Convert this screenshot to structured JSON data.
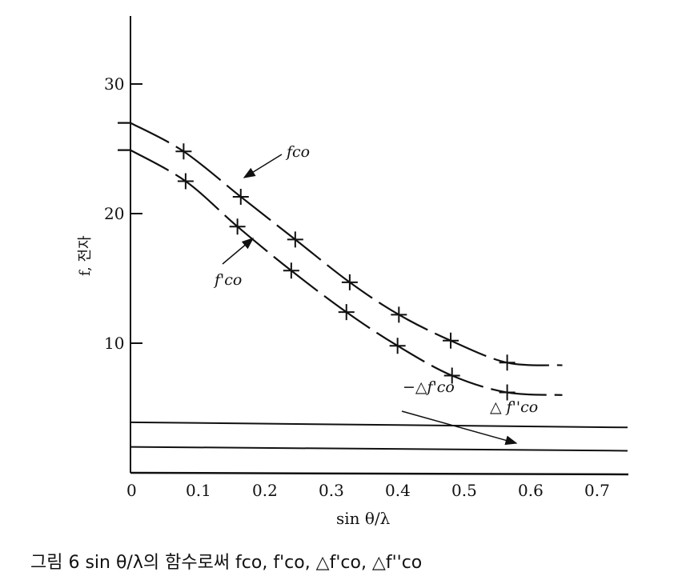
{
  "chart_data": {
    "type": "line",
    "xlabel": "sin θ/λ",
    "ylabel": "f, 전자",
    "xlim": [
      0,
      0.75
    ],
    "ylim": [
      0,
      35
    ],
    "xticks": [
      "0",
      "0.1",
      "0.2",
      "0.3",
      "0.4",
      "0.5",
      "0.6",
      "0.7"
    ],
    "xtick_values": [
      0,
      0.1,
      0.2,
      0.3,
      0.4,
      0.5,
      0.6,
      0.7
    ],
    "yticks": [
      "10",
      "20",
      "30"
    ],
    "ytick_values": [
      10,
      20,
      30
    ],
    "grid": false,
    "series": [
      {
        "name": "fco",
        "label": "fco",
        "markers": true,
        "x": [
          0,
          0.08,
          0.166,
          0.248,
          0.33,
          0.404,
          0.482,
          0.567,
          0.65
        ],
        "y": [
          27.0,
          24.8,
          21.3,
          18.0,
          14.7,
          12.2,
          10.2,
          8.5,
          8.3
        ],
        "marker_idx": [
          1,
          2,
          3,
          4,
          5,
          6,
          7
        ]
      },
      {
        "name": "f'co",
        "label": "f'co",
        "markers": true,
        "x": [
          0,
          0.083,
          0.161,
          0.242,
          0.325,
          0.402,
          0.484,
          0.567,
          0.65
        ],
        "y": [
          24.9,
          22.5,
          19.0,
          15.6,
          12.4,
          9.8,
          7.5,
          6.2,
          6.0
        ],
        "marker_idx": [
          1,
          2,
          3,
          4,
          5,
          6,
          7
        ]
      },
      {
        "name": "-Δf'co",
        "label": "−△f'co",
        "markers": false,
        "x": [
          0,
          0.7
        ],
        "y": [
          3.9,
          3.5
        ]
      },
      {
        "name": "Δf''co",
        "label": "△ f''co",
        "markers": false,
        "x": [
          0,
          0.7
        ],
        "y": [
          2.0,
          1.7
        ]
      }
    ]
  },
  "caption": "그림 6   sin θ/λ의 함수로써 fco,  f'co,  △f'co,  △f''co"
}
